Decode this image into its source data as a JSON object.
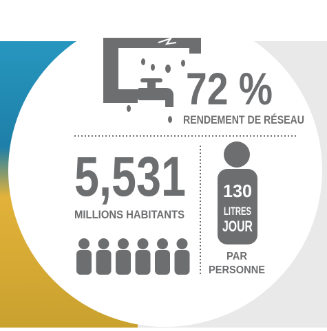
{
  "network": {
    "value": "72 %",
    "label": "RENDEMENT DE RÉSEAU"
  },
  "population": {
    "value": "5,531",
    "label": "MILLIONS HABITANTS"
  },
  "consumption": {
    "value": "130",
    "unit_line1": "LITRES",
    "unit_line2": "JOUR",
    "per_line1": "PAR",
    "per_line2": "PERSONNE"
  }
}
